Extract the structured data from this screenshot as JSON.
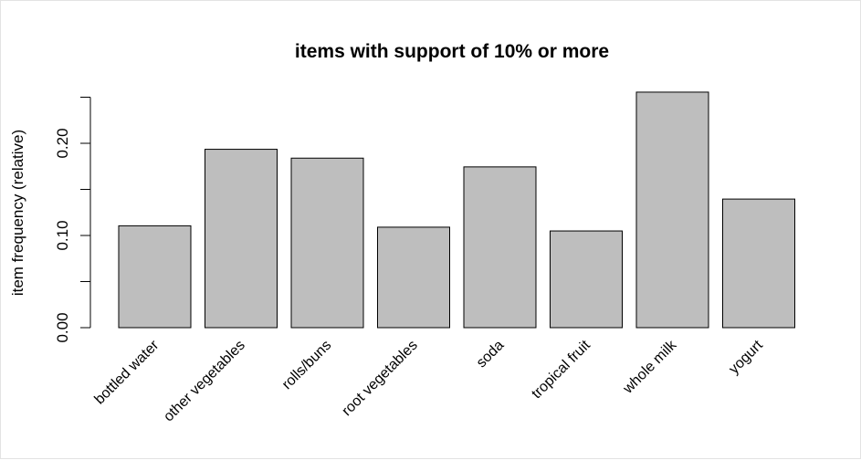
{
  "chart_data": {
    "type": "bar",
    "title": "items with support of 10% or more",
    "xlabel": "",
    "ylabel": "item frequency (relative)",
    "categories": [
      "bottled water",
      "other vegetables",
      "rolls/buns",
      "root vegetables",
      "soda",
      "tropical fruit",
      "whole milk",
      "yogurt"
    ],
    "values": [
      0.1105,
      0.1935,
      0.1839,
      0.109,
      0.1744,
      0.1049,
      0.2555,
      0.1395
    ],
    "ylim": [
      0,
      0.25
    ],
    "yticks": [
      0.0,
      0.05,
      0.1,
      0.15,
      0.2,
      0.25
    ],
    "ytick_labels": [
      "0.00",
      "",
      "0.10",
      "",
      "0.20",
      ""
    ],
    "bar_color": "#bebebe",
    "grid": false
  }
}
